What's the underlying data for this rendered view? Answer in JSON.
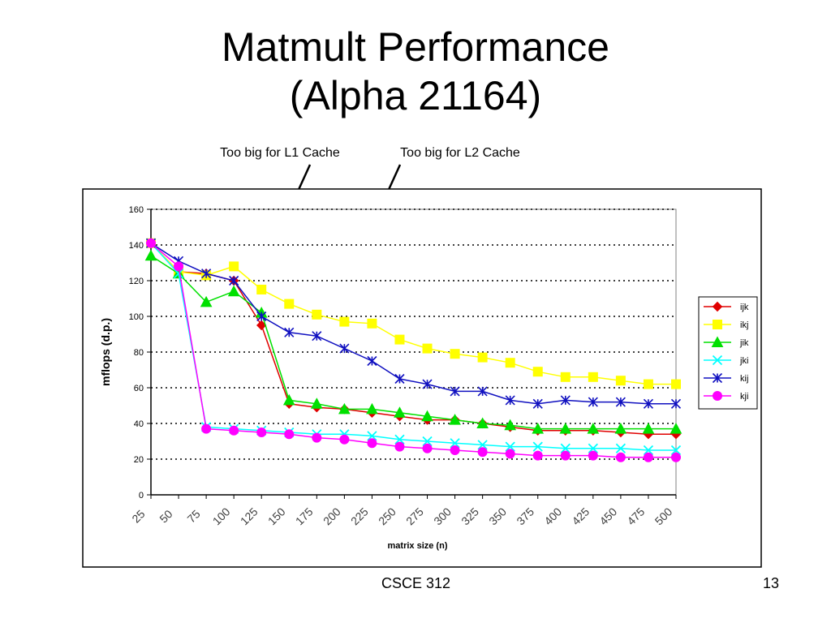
{
  "slide": {
    "title_line1": "Matmult Performance",
    "title_line2": "(Alpha 21164)",
    "annotation_l1": "Too big for L1 Cache",
    "annotation_l2": "Too big for L2 Cache",
    "footer_course": "CSCE 312",
    "footer_page": "13"
  },
  "chart_data": {
    "type": "line",
    "title": "",
    "xlabel": "matrix size (n)",
    "ylabel": "mflops (d.p.)",
    "ylim": [
      0,
      160
    ],
    "yticks": [
      0,
      20,
      40,
      60,
      80,
      100,
      120,
      140,
      160
    ],
    "grid": "horizontal dotted",
    "legend_position": "right",
    "categories": [
      "25",
      "50",
      "75",
      "100",
      "125",
      "150",
      "175",
      "200",
      "225",
      "250",
      "275",
      "300",
      "325",
      "350",
      "375",
      "400",
      "425",
      "450",
      "475",
      "500"
    ],
    "series": [
      {
        "name": "ijk",
        "color": "#e00000",
        "marker": "diamond",
        "values": [
          141,
          125,
          124,
          120,
          95,
          51,
          49,
          48,
          46,
          44,
          42,
          42,
          40,
          38,
          36,
          36,
          36,
          35,
          34,
          34
        ]
      },
      {
        "name": "ikj",
        "color": "#ffff00",
        "marker": "square",
        "values": [
          141,
          125,
          123,
          128,
          115,
          107,
          101,
          97,
          96,
          87,
          82,
          79,
          77,
          74,
          69,
          66,
          66,
          64,
          62,
          62
        ]
      },
      {
        "name": "jik",
        "color": "#00e000",
        "marker": "triangle",
        "values": [
          134,
          124,
          108,
          114,
          102,
          53,
          51,
          48,
          48,
          46,
          44,
          42,
          40,
          39,
          37,
          37,
          37,
          37,
          37,
          37
        ]
      },
      {
        "name": "jki",
        "color": "#00ffff",
        "marker": "x",
        "values": [
          141,
          124,
          38,
          37,
          36,
          35,
          34,
          34,
          33,
          31,
          30,
          29,
          28,
          27,
          27,
          26,
          26,
          26,
          25,
          25
        ]
      },
      {
        "name": "kij",
        "color": "#1010c0",
        "marker": "star",
        "values": [
          141,
          131,
          124,
          120,
          100,
          91,
          89,
          82,
          75,
          65,
          62,
          58,
          58,
          53,
          51,
          53,
          52,
          52,
          51,
          51
        ]
      },
      {
        "name": "kji",
        "color": "#ff00ff",
        "marker": "circle",
        "values": [
          141,
          128,
          37,
          36,
          35,
          34,
          32,
          31,
          29,
          27,
          26,
          25,
          24,
          23,
          22,
          22,
          22,
          21,
          21,
          21
        ]
      }
    ]
  }
}
